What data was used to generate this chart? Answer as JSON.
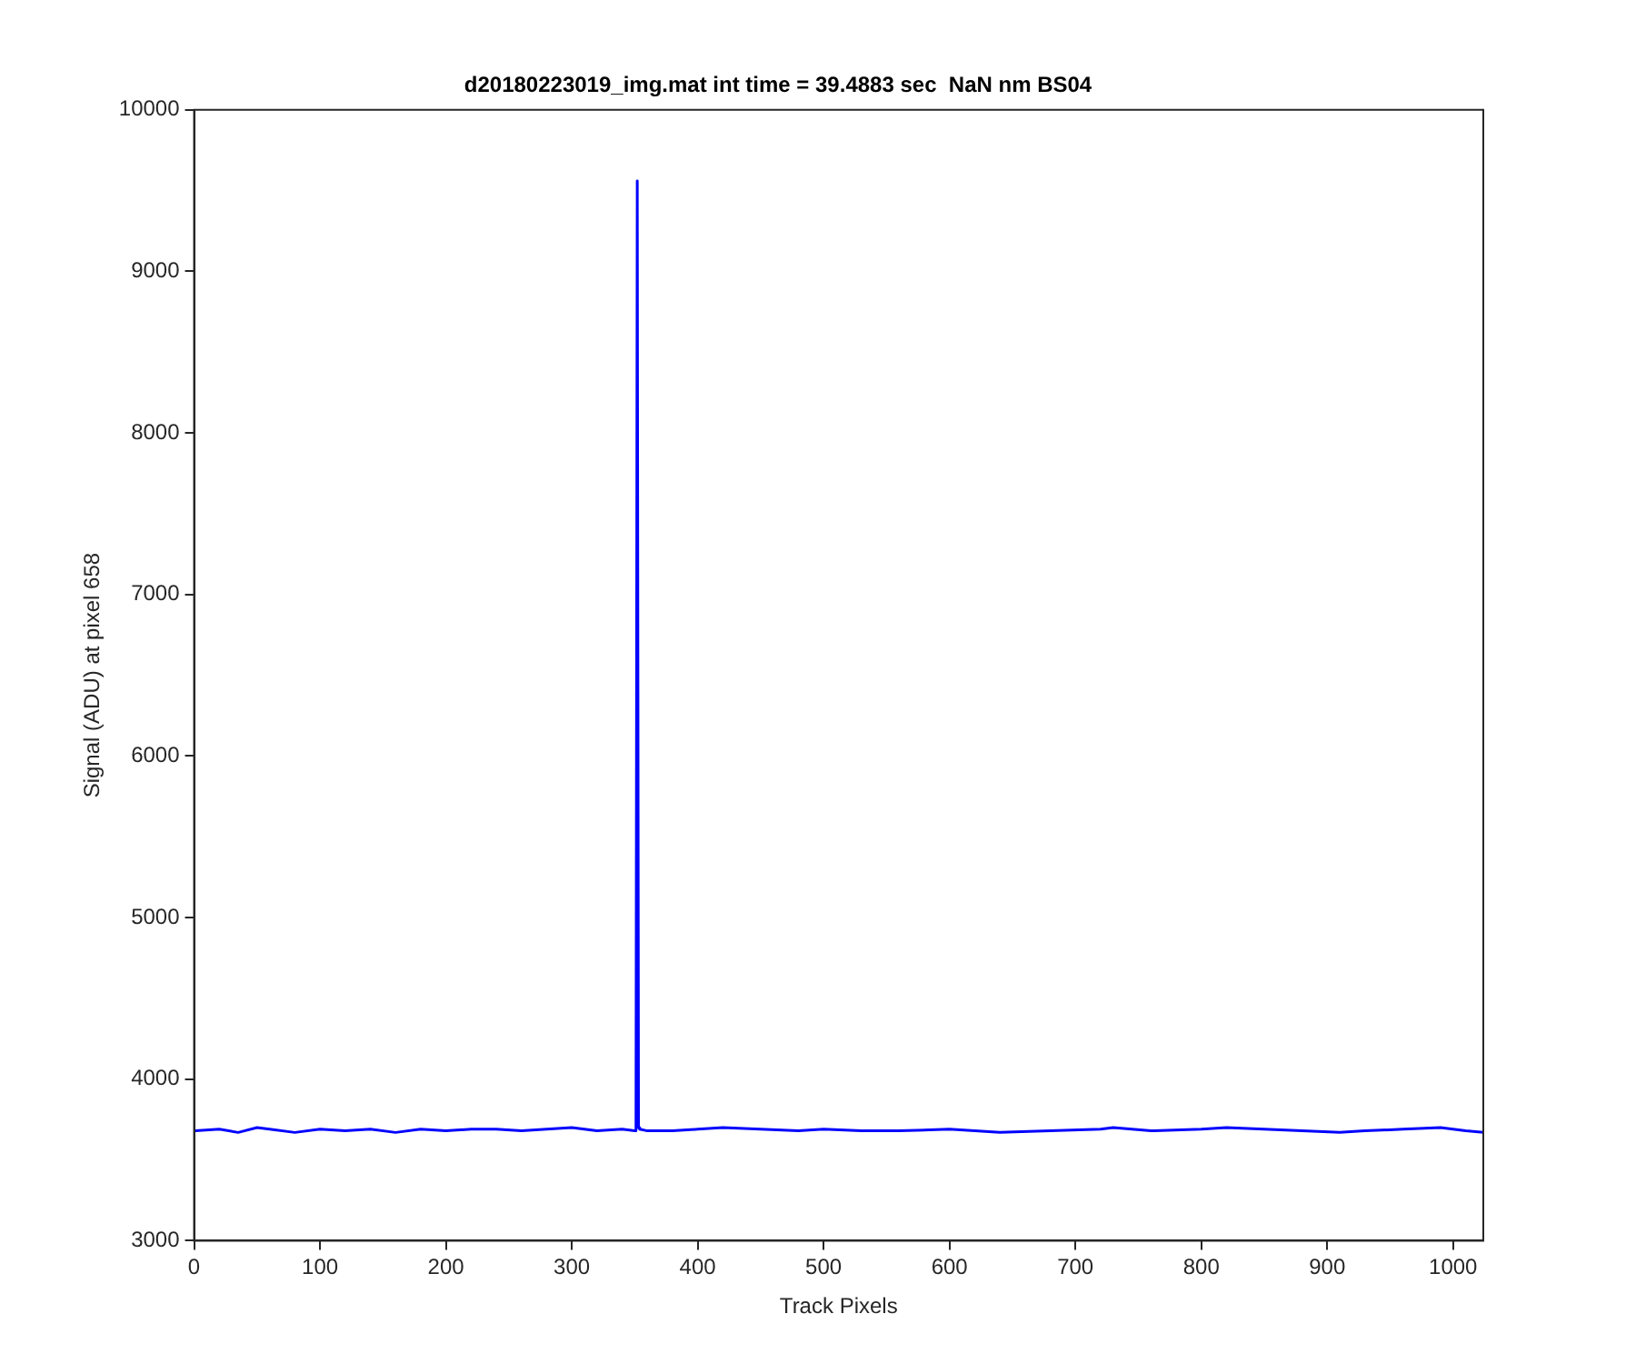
{
  "chart_data": {
    "type": "line",
    "title": "d20180223019_img.mat int time = 39.4883 sec  NaN nm BS04",
    "xlabel": "Track Pixels",
    "ylabel": "Signal (ADU) at pixel 658",
    "xlim": [
      0,
      1024
    ],
    "xticks": [
      0,
      100,
      200,
      300,
      400,
      500,
      600,
      700,
      800,
      900,
      1000
    ],
    "ylim": [
      3000,
      10000
    ],
    "yticks": [
      3000,
      4000,
      5000,
      6000,
      7000,
      8000,
      9000,
      10000
    ],
    "marker": "none",
    "series": [
      {
        "color": "#0000ff",
        "x": [
          1,
          20,
          35,
          50,
          60,
          80,
          100,
          120,
          140,
          160,
          180,
          200,
          220,
          240,
          260,
          280,
          300,
          320,
          340,
          350,
          351,
          352,
          353,
          354,
          360,
          380,
          400,
          420,
          450,
          480,
          500,
          530,
          560,
          600,
          640,
          680,
          720,
          730,
          760,
          800,
          820,
          850,
          880,
          910,
          930,
          960,
          990,
          1010,
          1024
        ],
        "values": [
          3680,
          3690,
          3670,
          3700,
          3690,
          3670,
          3690,
          3680,
          3690,
          3670,
          3690,
          3680,
          3690,
          3690,
          3680,
          3690,
          3700,
          3680,
          3690,
          3680,
          3700,
          9560,
          3700,
          3690,
          3680,
          3680,
          3690,
          3700,
          3690,
          3680,
          3690,
          3680,
          3680,
          3690,
          3670,
          3680,
          3690,
          3700,
          3680,
          3690,
          3700,
          3690,
          3680,
          3670,
          3680,
          3690,
          3700,
          3680,
          3670
        ]
      }
    ]
  }
}
